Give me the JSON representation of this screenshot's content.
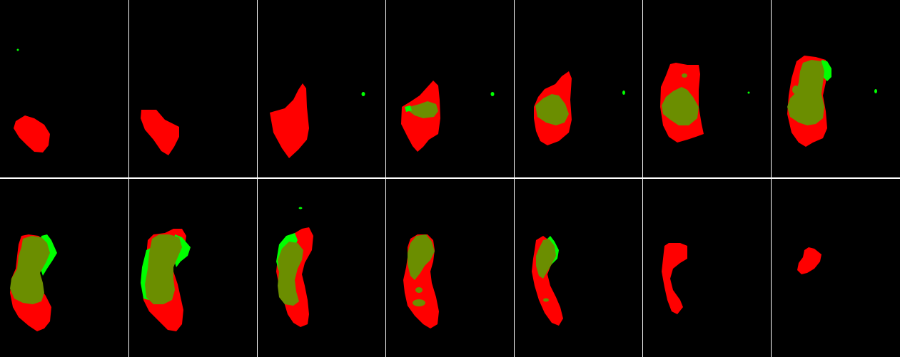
{
  "colors": {
    "background": "#000000",
    "divider": "#FFFFFF",
    "prediction_only": "#FF0000",
    "ground_truth_only": "#00FF00",
    "overlap": "#6B8E00"
  },
  "tile_count": 14,
  "grid_rows": 2,
  "grid_cols": 7
}
